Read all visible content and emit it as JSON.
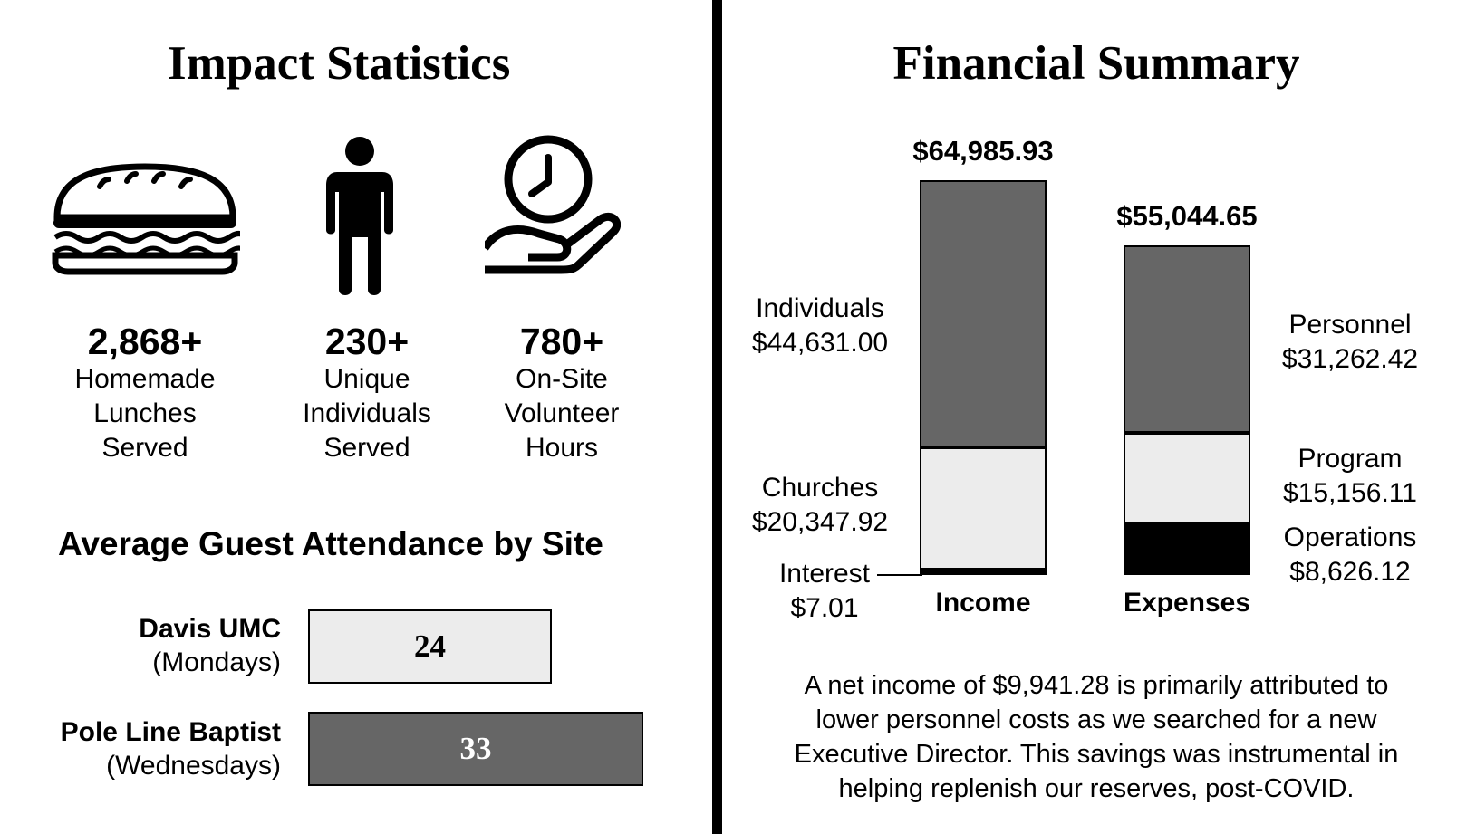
{
  "impact": {
    "title": "Impact Statistics",
    "stats": [
      {
        "icon": "sandwich-icon",
        "value": "2,868+",
        "label_lines": [
          "Homemade",
          "Lunches",
          "Served"
        ]
      },
      {
        "icon": "person-icon",
        "value": "230+",
        "label_lines": [
          "Unique",
          "Individuals",
          "Served"
        ]
      },
      {
        "icon": "clock-hand-icon",
        "value": "780+",
        "label_lines": [
          "On-Site",
          "Volunteer",
          "Hours"
        ]
      }
    ]
  },
  "attendance": {
    "title": "Average Guest Attendance by Site",
    "sites": [
      {
        "name": "Davis UMC",
        "day": "(Mondays)",
        "value": 24,
        "value_label": "24",
        "color": "#ececec",
        "text_color": "#000000"
      },
      {
        "name": "Pole Line Baptist",
        "day": "(Wednesdays)",
        "value": 33,
        "value_label": "33",
        "color": "#666666",
        "text_color": "#ffffff"
      }
    ]
  },
  "financial": {
    "title": "Financial Summary",
    "summary_lines": [
      "A net income of $9,941.28 is primarily attributed to",
      "lower personnel costs as we searched for a new",
      "Executive Director. This savings was instrumental in",
      "helping replenish our reserves, post-COVID."
    ]
  },
  "chart_data": {
    "type": "bar",
    "stacked": true,
    "title": "Financial Summary",
    "categories": [
      "Income",
      "Expenses"
    ],
    "totals": [
      64985.93,
      55044.65
    ],
    "total_labels": [
      "$64,985.93",
      "$55,044.65"
    ],
    "series": [
      {
        "stack": "Income",
        "segments": [
          {
            "name": "Interest",
            "value": 7.01,
            "label": "$7.01",
            "color": "#000000"
          },
          {
            "name": "Churches",
            "value": 20347.92,
            "label": "$20,347.92",
            "color": "#ececec"
          },
          {
            "name": "Individuals",
            "value": 44631.0,
            "label": "$44,631.00",
            "color": "#666666"
          }
        ]
      },
      {
        "stack": "Expenses",
        "segments": [
          {
            "name": "Operations",
            "value": 8626.12,
            "label": "$8,626.12",
            "color": "#000000"
          },
          {
            "name": "Program",
            "value": 15156.11,
            "label": "$15,156.11",
            "color": "#ececec"
          },
          {
            "name": "Personnel",
            "value": 31262.42,
            "label": "$31,262.42",
            "color": "#666666"
          }
        ]
      }
    ],
    "ylim": [
      0,
      64985.93
    ],
    "xlabel": "",
    "ylabel": "",
    "grid": false
  }
}
